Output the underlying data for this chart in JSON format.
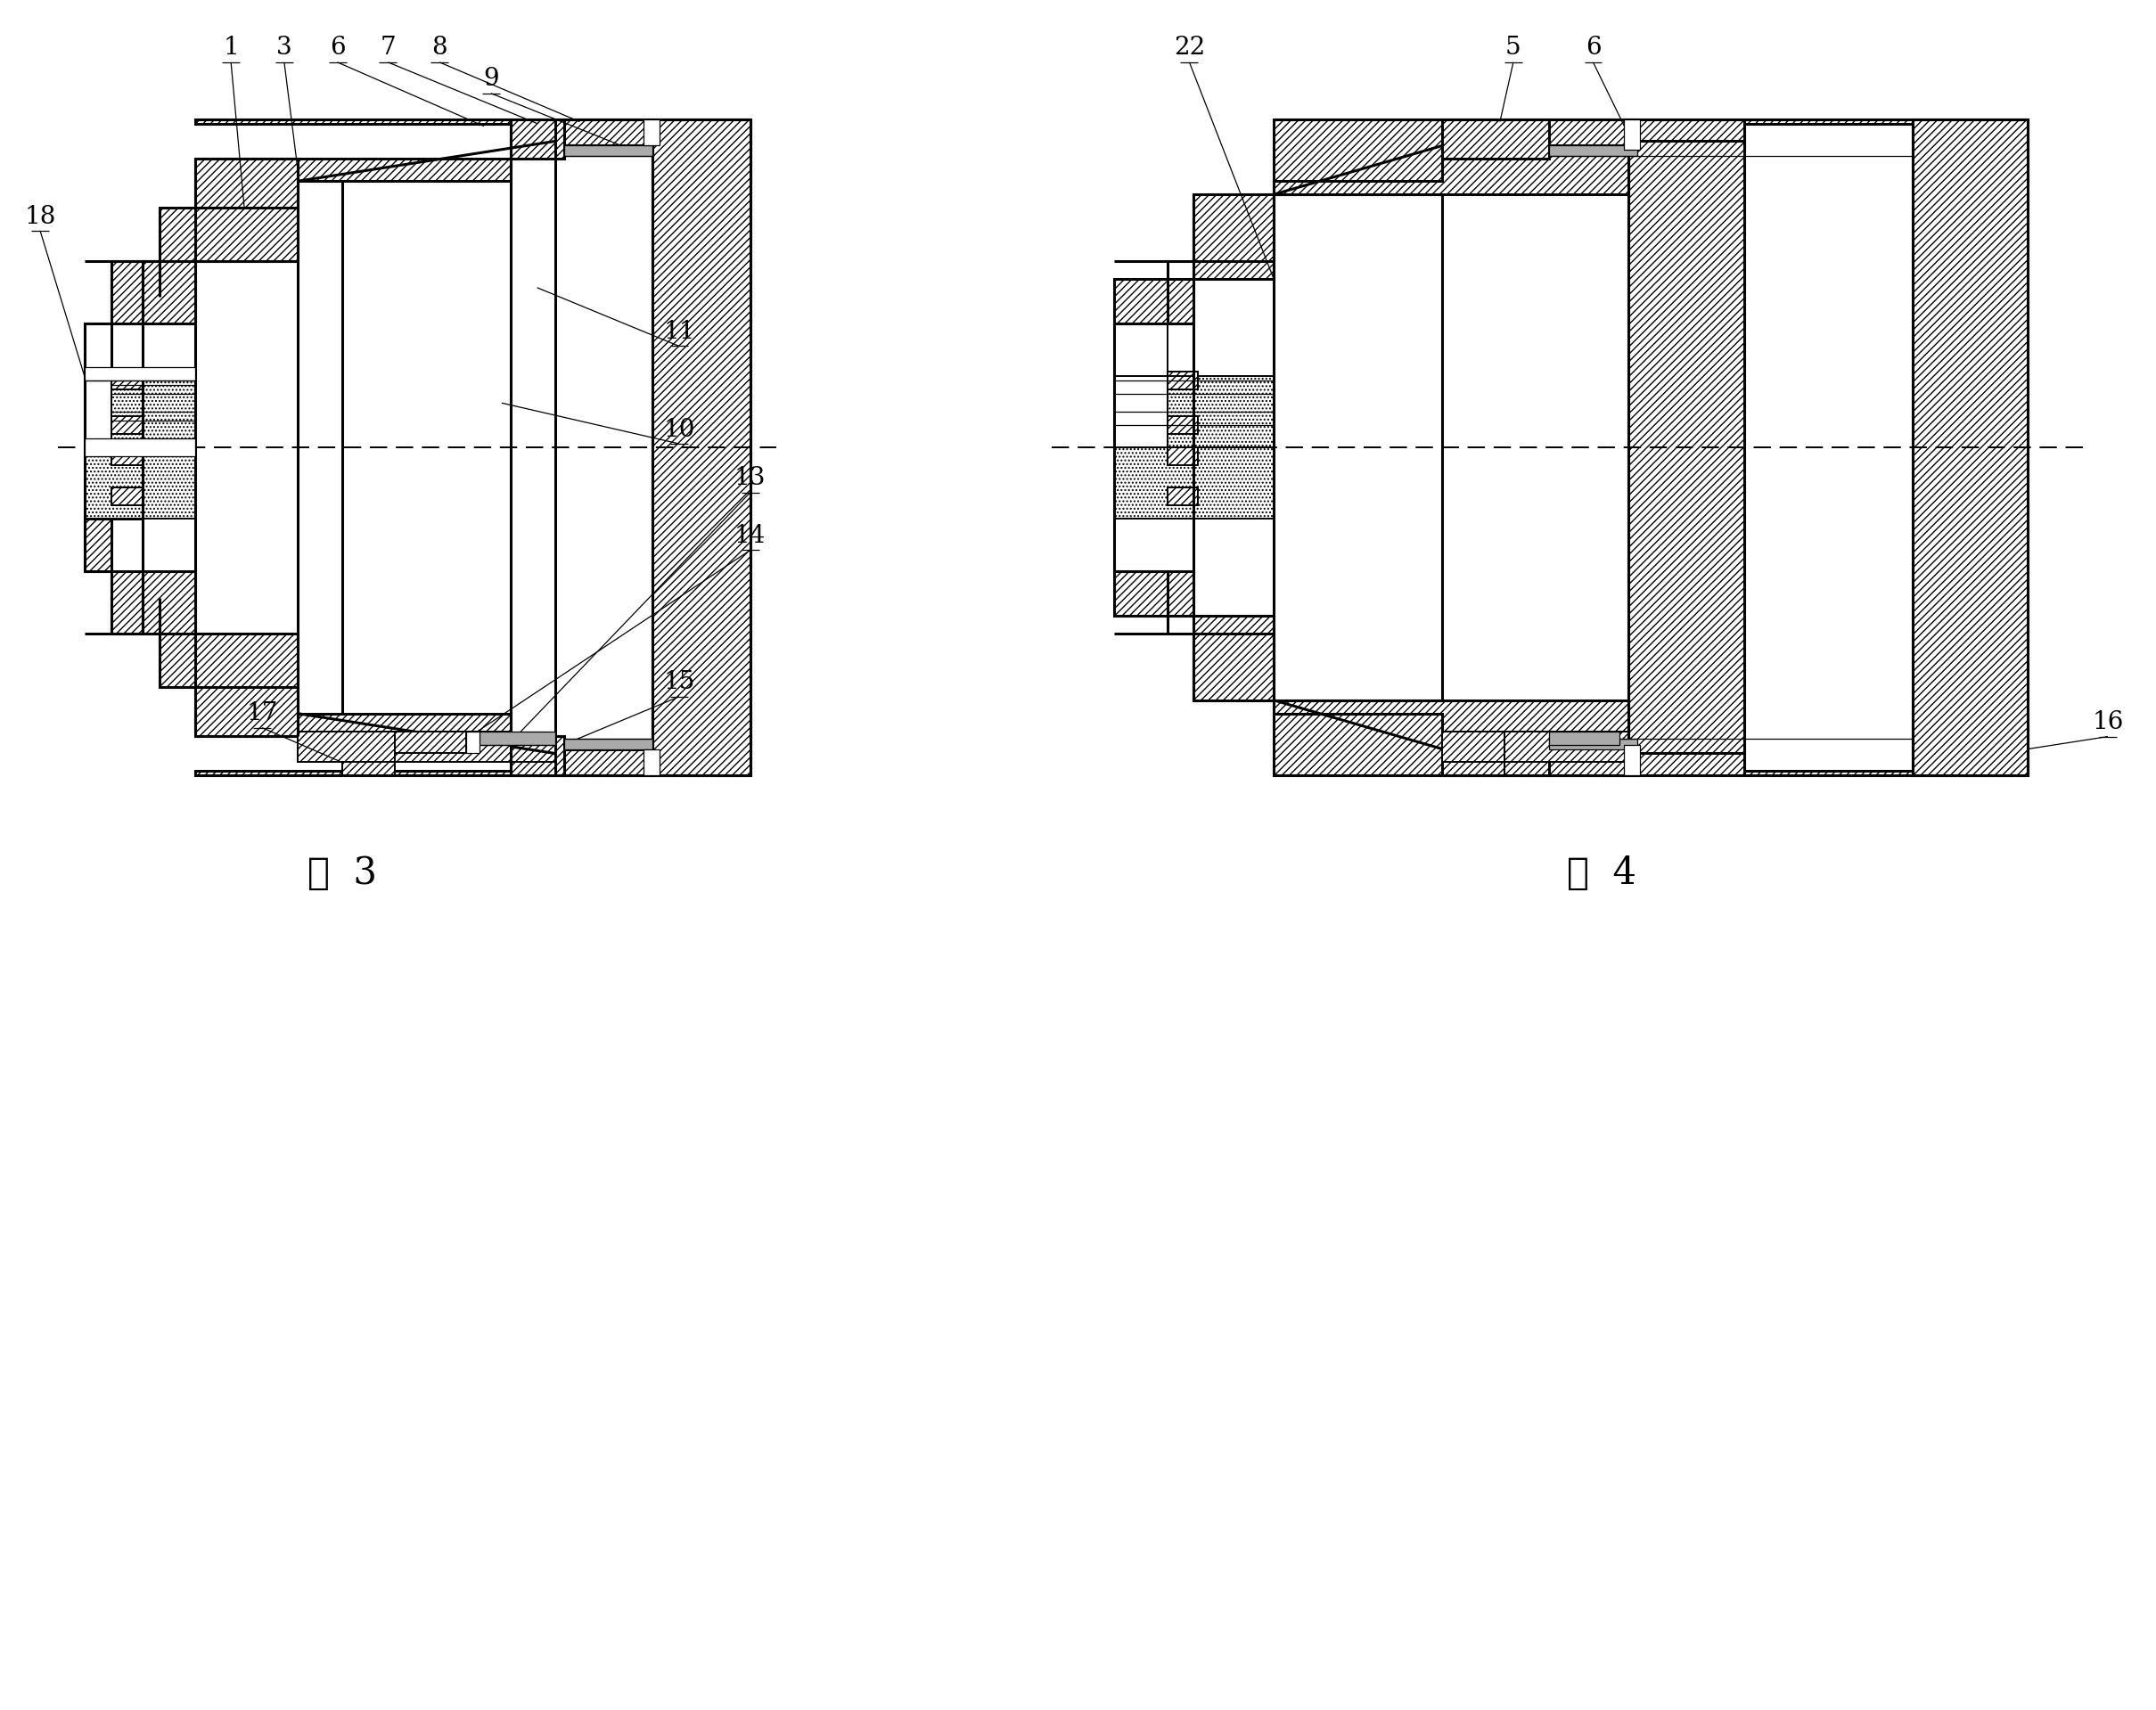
{
  "fig_width": 24.19,
  "fig_height": 19.19,
  "bg_color": "#ffffff",
  "title_fig3": "图  3",
  "title_fig4": "图  4",
  "lw2": 2.2,
  "lw1": 1.4,
  "lw0": 0.9,
  "label_fs": 20,
  "title_fs": 30
}
